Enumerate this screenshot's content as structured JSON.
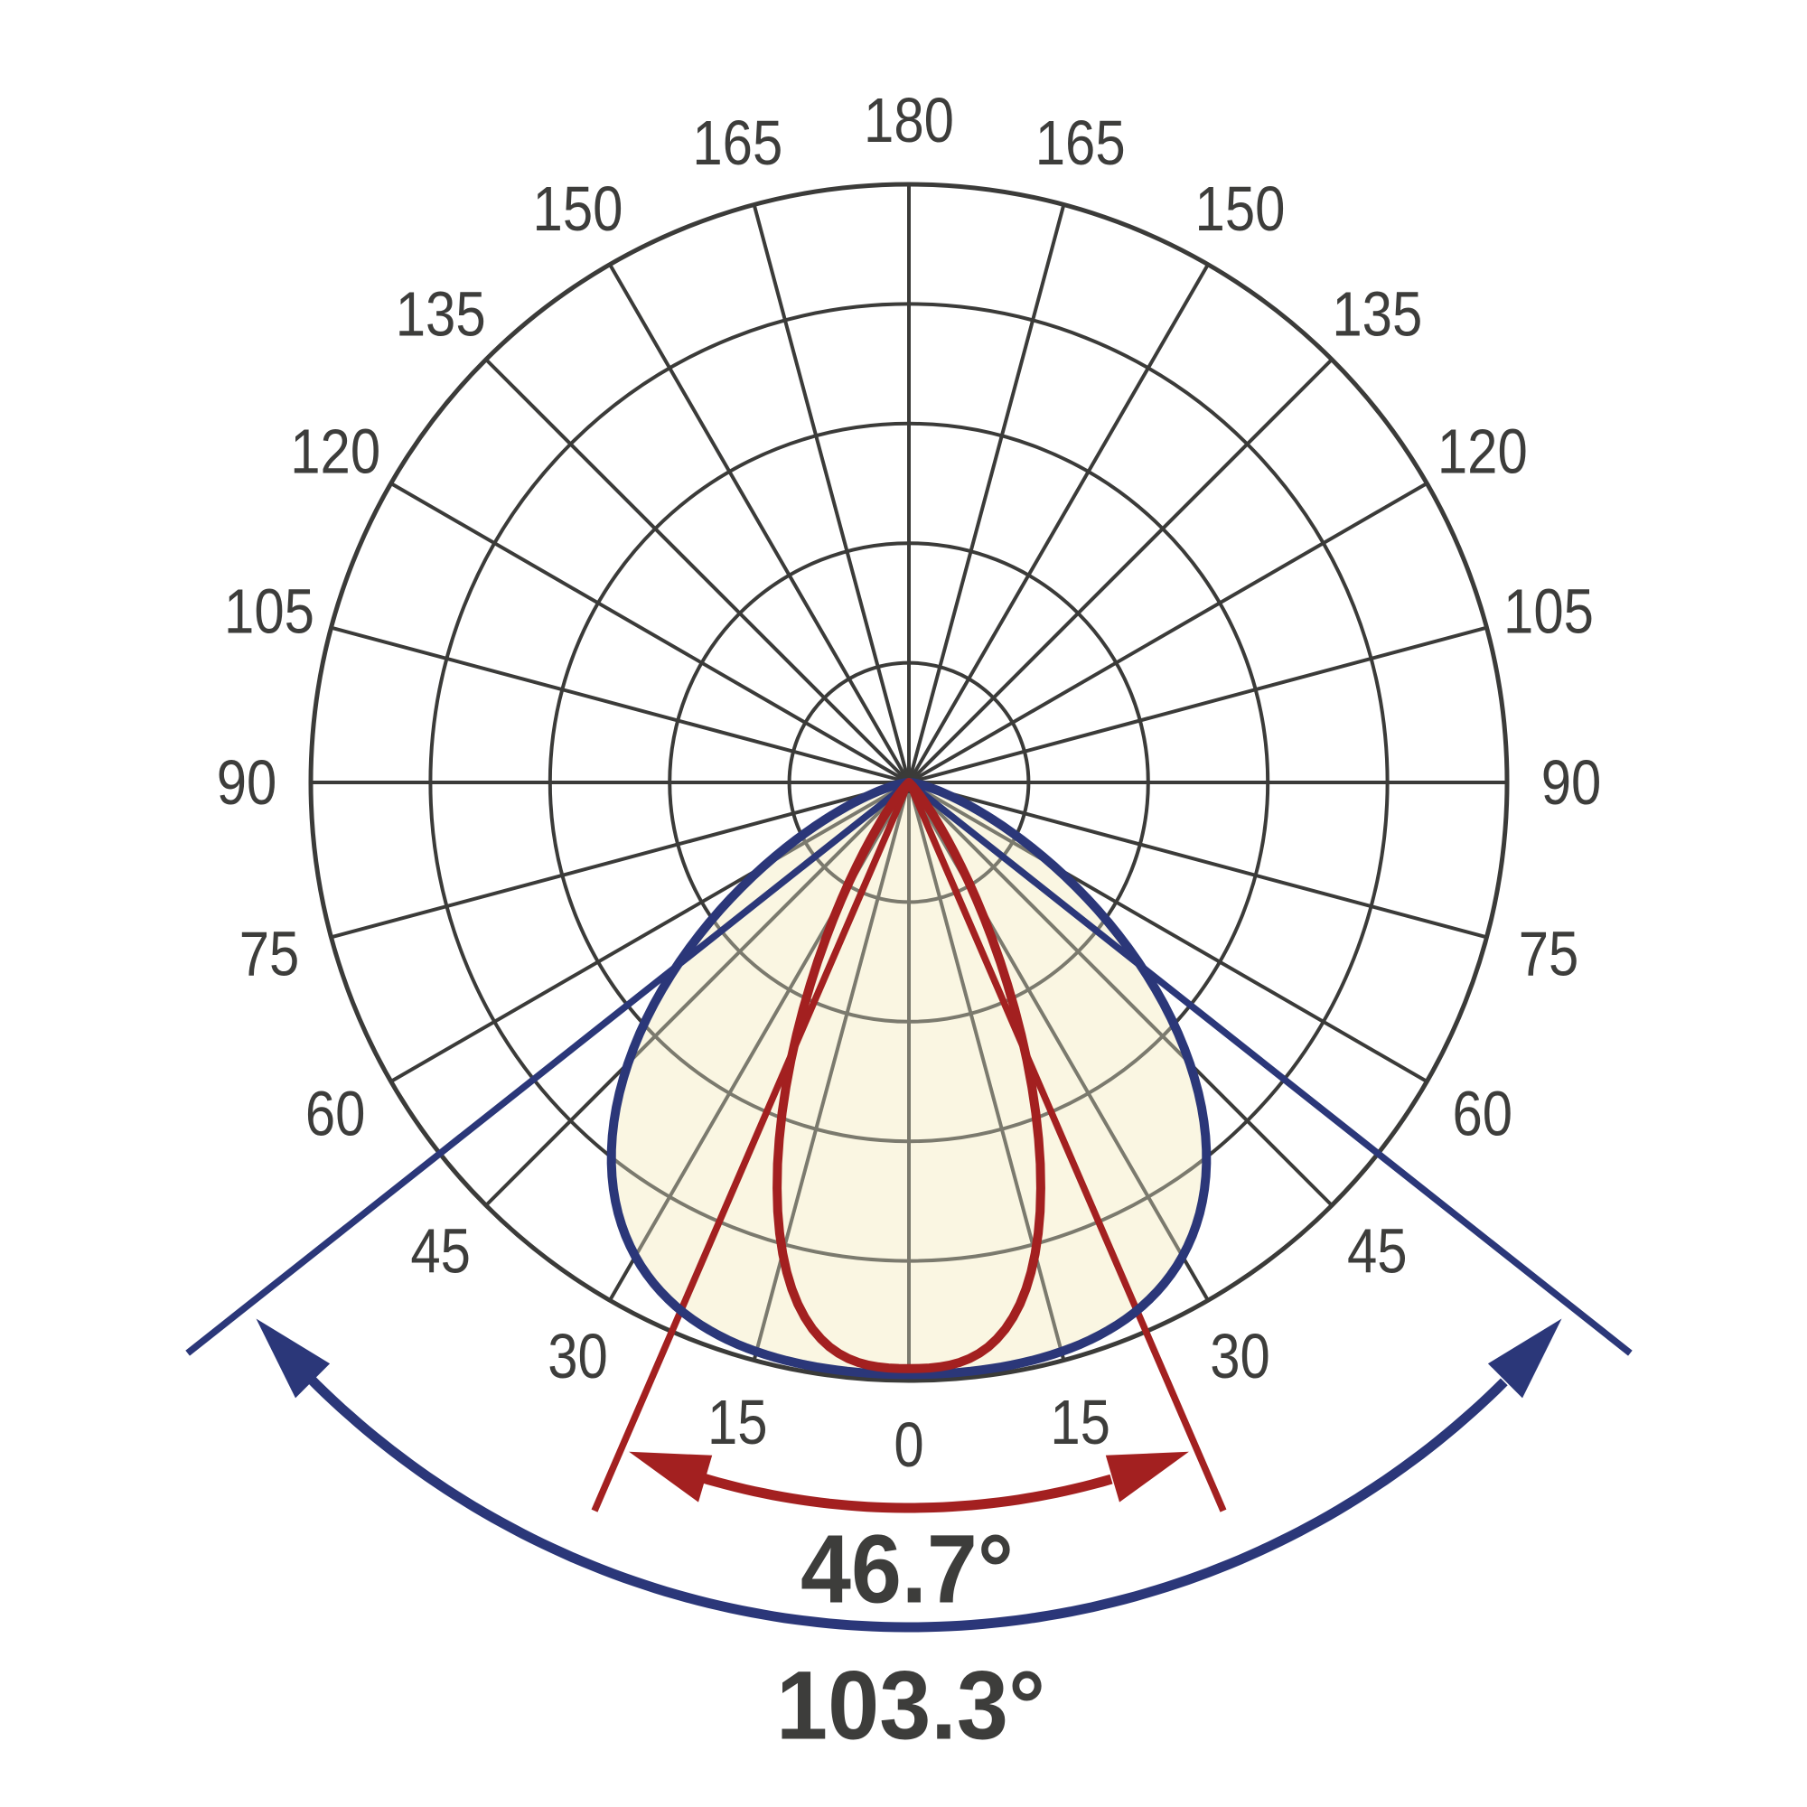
{
  "page": {
    "background": "#FFFFFF"
  },
  "chart_data": {
    "type": "polar",
    "title": "",
    "description": "Photometric polar diagram (luminous intensity distribution) with a narrow-beam and a wide-beam curve and their beam-angle dimension arrows",
    "angle_axis": {
      "unit": "degrees",
      "zero_direction": "down",
      "step_deg": 15,
      "mirrored": true,
      "tick_labels": [
        "0",
        "15",
        "30",
        "45",
        "60",
        "75",
        "90",
        "105",
        "120",
        "135",
        "150",
        "165",
        "180"
      ],
      "label_color": "#3D3D3B"
    },
    "radial_axis": {
      "rings_pct": [
        20,
        40,
        60,
        80,
        100
      ],
      "grid_color": "#3B3B39",
      "grid_color_inside_beam": "#7B7A6E"
    },
    "beams": [
      {
        "name": "narrow-beam",
        "label": "46.7°",
        "beam_angle_deg": 46.7,
        "half_angle_deg": 23.35,
        "profile": "super-gaussian",
        "exponent": 3,
        "peak_r_pct": 98,
        "color": "#A32020",
        "normalized_intensity_by_angle": {
          "0": 1.0,
          "15": 0.83,
          "23.35": 0.5,
          "30": 0.23,
          "45": 0.01,
          "60": 0.0
        }
      },
      {
        "name": "wide-beam",
        "label": "103.3°",
        "beam_angle_deg": 103.3,
        "half_angle_deg": 51.65,
        "profile": "super-gaussian",
        "exponent": 4,
        "peak_r_pct": 99,
        "color": "#2B3779",
        "normalized_intensity_by_angle": {
          "0": 1.0,
          "15": 0.99,
          "30": 0.92,
          "45": 0.67,
          "51.65": 0.5,
          "60": 0.28,
          "75": 0.05,
          "90": 0.0
        }
      }
    ],
    "beam_fill_color": "#FAF6E2",
    "legend": "none",
    "grid": true
  }
}
